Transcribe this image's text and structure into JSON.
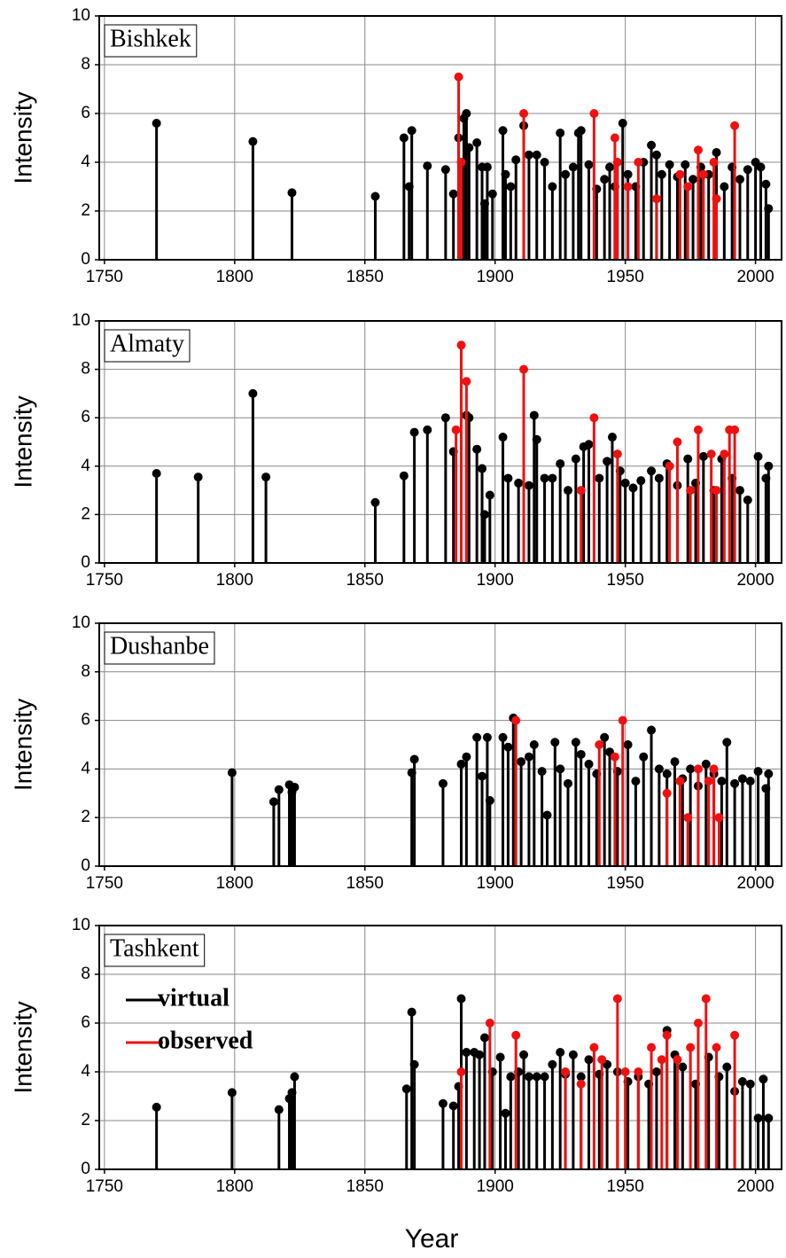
{
  "chart_data": [
    {
      "type": "stem",
      "title": "Bishkek",
      "y_label": "Intensity",
      "xlim": [
        1748,
        2010
      ],
      "ylim": [
        0,
        10
      ],
      "xticks": [
        1750,
        1800,
        1850,
        1900,
        1950,
        2000
      ],
      "yticks": [
        0,
        2,
        4,
        6,
        8,
        10
      ],
      "grid": true,
      "series": [
        {
          "color": "#000000",
          "x": [
            1770,
            1807,
            1822,
            1854,
            1865,
            1867,
            1868,
            1874,
            1881,
            1884,
            1886,
            1888,
            1889,
            1890,
            1893,
            1895,
            1896,
            1897,
            1899,
            1903,
            1904,
            1906,
            1908,
            1911,
            1913,
            1916,
            1919,
            1922,
            1925,
            1927,
            1930,
            1932,
            1933,
            1936,
            1939,
            1942,
            1944,
            1946,
            1949,
            1951,
            1954,
            1957,
            1960,
            1962,
            1964,
            1967,
            1970,
            1973,
            1976,
            1979,
            1982,
            1985,
            1988,
            1991,
            1994,
            1997,
            2000,
            2002,
            2004,
            2005
          ],
          "values": [
            5.6,
            4.85,
            2.75,
            2.6,
            5.0,
            3.0,
            5.3,
            3.85,
            3.7,
            2.7,
            5.0,
            5.8,
            6.0,
            4.6,
            4.8,
            3.8,
            2.3,
            3.8,
            2.7,
            5.3,
            3.5,
            3.0,
            4.1,
            5.5,
            4.3,
            4.3,
            4.0,
            3.0,
            5.2,
            3.5,
            3.8,
            5.2,
            5.3,
            3.9,
            2.9,
            3.3,
            3.8,
            3.0,
            5.6,
            3.5,
            3.0,
            4.0,
            4.7,
            4.3,
            3.5,
            3.9,
            3.4,
            3.9,
            3.3,
            3.8,
            3.5,
            4.4,
            3.0,
            3.8,
            3.3,
            3.7,
            4.0,
            3.8,
            3.1,
            2.1
          ]
        },
        {
          "color": "#ee1111",
          "x": [
            1886,
            1887,
            1911,
            1938,
            1946,
            1947,
            1951,
            1955,
            1962,
            1971,
            1974,
            1978,
            1980,
            1984,
            1985,
            1992
          ],
          "values": [
            7.5,
            4.0,
            6.0,
            6.0,
            5.0,
            4.0,
            3.0,
            4.0,
            2.5,
            3.5,
            3.0,
            4.5,
            3.5,
            4.0,
            2.5,
            5.5
          ]
        }
      ]
    },
    {
      "type": "stem",
      "title": "Almaty",
      "y_label": "Intensity",
      "xlim": [
        1748,
        2010
      ],
      "ylim": [
        0,
        10
      ],
      "xticks": [
        1750,
        1800,
        1850,
        1900,
        1950,
        2000
      ],
      "yticks": [
        0,
        2,
        4,
        6,
        8,
        10
      ],
      "grid": true,
      "series": [
        {
          "color": "#000000",
          "x": [
            1770,
            1786,
            1807,
            1812,
            1854,
            1865,
            1869,
            1874,
            1881,
            1884,
            1889,
            1890,
            1893,
            1895,
            1896,
            1898,
            1903,
            1905,
            1909,
            1913,
            1915,
            1916,
            1919,
            1922,
            1925,
            1928,
            1931,
            1934,
            1936,
            1940,
            1943,
            1945,
            1948,
            1950,
            1953,
            1956,
            1960,
            1963,
            1966,
            1970,
            1974,
            1977,
            1980,
            1984,
            1987,
            1991,
            1994,
            1997,
            2001,
            2004,
            2005
          ],
          "values": [
            3.7,
            3.55,
            7.0,
            3.55,
            2.5,
            3.6,
            5.4,
            5.5,
            6.0,
            4.6,
            6.1,
            6.0,
            4.7,
            3.9,
            2.0,
            2.8,
            5.2,
            3.5,
            3.3,
            3.2,
            6.1,
            5.1,
            3.5,
            3.5,
            4.1,
            3.0,
            4.3,
            4.8,
            4.9,
            3.5,
            4.2,
            5.2,
            3.8,
            3.3,
            3.1,
            3.4,
            3.8,
            3.5,
            4.1,
            3.2,
            4.3,
            3.3,
            4.4,
            3.0,
            4.3,
            3.5,
            3.0,
            2.6,
            4.4,
            3.5,
            4.0
          ]
        },
        {
          "color": "#ee1111",
          "x": [
            1885,
            1887,
            1889,
            1911,
            1933,
            1938,
            1947,
            1967,
            1970,
            1975,
            1978,
            1983,
            1985,
            1988,
            1990,
            1992
          ],
          "values": [
            5.5,
            9.0,
            7.5,
            8.0,
            3.0,
            6.0,
            4.5,
            4.0,
            5.0,
            3.0,
            5.5,
            4.5,
            3.0,
            4.5,
            5.5,
            5.5
          ]
        }
      ]
    },
    {
      "type": "stem",
      "title": "Dushanbe",
      "y_label": "Intensity",
      "xlim": [
        1748,
        2010
      ],
      "ylim": [
        0,
        10
      ],
      "xticks": [
        1750,
        1800,
        1850,
        1900,
        1950,
        2000
      ],
      "yticks": [
        0,
        2,
        4,
        6,
        8,
        10
      ],
      "grid": true,
      "series": [
        {
          "color": "#000000",
          "x": [
            1799,
            1815,
            1817,
            1821,
            1822,
            1823,
            1868,
            1869,
            1880,
            1887,
            1889,
            1893,
            1895,
            1897,
            1898,
            1903,
            1905,
            1907,
            1910,
            1913,
            1915,
            1918,
            1920,
            1923,
            1925,
            1928,
            1931,
            1933,
            1936,
            1939,
            1942,
            1944,
            1947,
            1951,
            1954,
            1957,
            1960,
            1963,
            1966,
            1969,
            1972,
            1975,
            1978,
            1981,
            1984,
            1987,
            1989,
            1992,
            1995,
            1998,
            2001,
            2004,
            2005
          ],
          "values": [
            3.85,
            2.65,
            3.15,
            3.35,
            3.05,
            3.25,
            3.85,
            4.4,
            3.4,
            4.2,
            4.5,
            5.3,
            3.7,
            5.3,
            2.7,
            5.3,
            4.9,
            6.1,
            4.3,
            4.5,
            5.0,
            3.9,
            2.1,
            5.1,
            4.0,
            3.4,
            5.1,
            4.6,
            4.2,
            3.8,
            5.3,
            4.7,
            3.9,
            5.0,
            3.5,
            4.5,
            5.6,
            4.0,
            3.8,
            4.3,
            3.6,
            4.0,
            3.3,
            4.2,
            3.8,
            3.5,
            5.1,
            3.4,
            3.6,
            3.5,
            3.9,
            3.2,
            3.8
          ]
        },
        {
          "color": "#ee1111",
          "x": [
            1908,
            1940,
            1946,
            1949,
            1966,
            1971,
            1974,
            1978,
            1982,
            1984,
            1986
          ],
          "values": [
            6.0,
            5.0,
            4.5,
            6.0,
            3.0,
            3.5,
            2.0,
            4.0,
            3.5,
            4.0,
            2.0
          ]
        }
      ]
    },
    {
      "type": "stem",
      "title": "Tashkent",
      "y_label": "Intensity",
      "x_label": "Year",
      "xlim": [
        1748,
        2010
      ],
      "ylim": [
        0,
        10
      ],
      "xticks": [
        1750,
        1800,
        1850,
        1900,
        1950,
        2000
      ],
      "yticks": [
        0,
        2,
        4,
        6,
        8,
        10
      ],
      "grid": true,
      "legend": "upper left",
      "series": [
        {
          "name": "virtual",
          "color": "#000000",
          "x": [
            1770,
            1799,
            1817,
            1821,
            1822,
            1823,
            1866,
            1868,
            1869,
            1880,
            1884,
            1886,
            1887,
            1889,
            1892,
            1894,
            1896,
            1899,
            1902,
            1904,
            1906,
            1909,
            1911,
            1913,
            1916,
            1919,
            1922,
            1925,
            1927,
            1930,
            1933,
            1936,
            1940,
            1943,
            1947,
            1951,
            1955,
            1959,
            1962,
            1966,
            1969,
            1972,
            1977,
            1982,
            1986,
            1989,
            1992,
            1995,
            1998,
            2001,
            2003,
            2005
          ],
          "values": [
            2.55,
            3.15,
            2.45,
            2.9,
            3.15,
            3.8,
            3.3,
            6.45,
            4.3,
            2.7,
            2.6,
            3.4,
            7.0,
            4.8,
            4.8,
            4.7,
            5.4,
            4.0,
            4.6,
            2.3,
            3.8,
            4.0,
            4.7,
            3.8,
            3.8,
            3.8,
            4.3,
            4.8,
            3.9,
            4.7,
            3.8,
            4.5,
            3.9,
            4.3,
            4.0,
            3.6,
            3.8,
            3.5,
            4.0,
            5.7,
            4.7,
            4.2,
            3.5,
            4.6,
            3.8,
            4.2,
            3.2,
            3.6,
            3.5,
            2.1,
            3.7,
            2.1
          ]
        },
        {
          "name": "observed",
          "color": "#ee1111",
          "x": [
            1887,
            1898,
            1908,
            1927,
            1933,
            1938,
            1941,
            1947,
            1950,
            1955,
            1960,
            1964,
            1966,
            1970,
            1975,
            1978,
            1981,
            1985,
            1992
          ],
          "values": [
            4.0,
            6.0,
            5.5,
            4.0,
            3.5,
            5.0,
            4.5,
            7.0,
            4.0,
            4.0,
            5.0,
            4.5,
            5.5,
            4.5,
            5.0,
            6.0,
            7.0,
            5.0,
            5.5
          ]
        }
      ]
    }
  ]
}
